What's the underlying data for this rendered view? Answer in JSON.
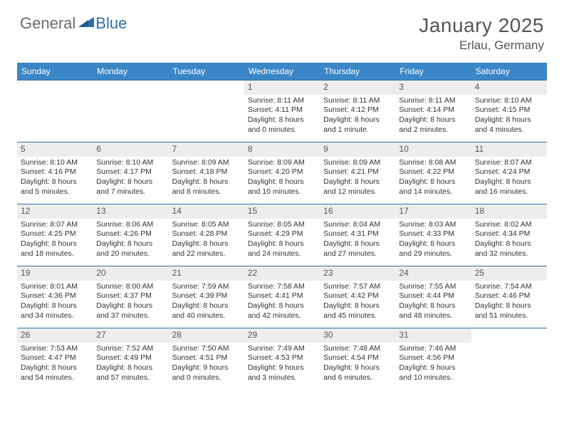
{
  "logo": {
    "general": "General",
    "blue": "Blue"
  },
  "title": "January 2025",
  "location": "Erlau, Germany",
  "header_bg": "#3b86c6",
  "weekdays": [
    "Sunday",
    "Monday",
    "Tuesday",
    "Wednesday",
    "Thursday",
    "Friday",
    "Saturday"
  ],
  "weeks": [
    [
      null,
      null,
      null,
      {
        "n": "1",
        "sr": "8:11 AM",
        "ss": "4:11 PM",
        "dl1": "Daylight: 8 hours",
        "dl2": "and 0 minutes."
      },
      {
        "n": "2",
        "sr": "8:11 AM",
        "ss": "4:12 PM",
        "dl1": "Daylight: 8 hours",
        "dl2": "and 1 minute."
      },
      {
        "n": "3",
        "sr": "8:11 AM",
        "ss": "4:14 PM",
        "dl1": "Daylight: 8 hours",
        "dl2": "and 2 minutes."
      },
      {
        "n": "4",
        "sr": "8:10 AM",
        "ss": "4:15 PM",
        "dl1": "Daylight: 8 hours",
        "dl2": "and 4 minutes."
      }
    ],
    [
      {
        "n": "5",
        "sr": "8:10 AM",
        "ss": "4:16 PM",
        "dl1": "Daylight: 8 hours",
        "dl2": "and 5 minutes."
      },
      {
        "n": "6",
        "sr": "8:10 AM",
        "ss": "4:17 PM",
        "dl1": "Daylight: 8 hours",
        "dl2": "and 7 minutes."
      },
      {
        "n": "7",
        "sr": "8:09 AM",
        "ss": "4:18 PM",
        "dl1": "Daylight: 8 hours",
        "dl2": "and 8 minutes."
      },
      {
        "n": "8",
        "sr": "8:09 AM",
        "ss": "4:20 PM",
        "dl1": "Daylight: 8 hours",
        "dl2": "and 10 minutes."
      },
      {
        "n": "9",
        "sr": "8:09 AM",
        "ss": "4:21 PM",
        "dl1": "Daylight: 8 hours",
        "dl2": "and 12 minutes."
      },
      {
        "n": "10",
        "sr": "8:08 AM",
        "ss": "4:22 PM",
        "dl1": "Daylight: 8 hours",
        "dl2": "and 14 minutes."
      },
      {
        "n": "11",
        "sr": "8:07 AM",
        "ss": "4:24 PM",
        "dl1": "Daylight: 8 hours",
        "dl2": "and 16 minutes."
      }
    ],
    [
      {
        "n": "12",
        "sr": "8:07 AM",
        "ss": "4:25 PM",
        "dl1": "Daylight: 8 hours",
        "dl2": "and 18 minutes."
      },
      {
        "n": "13",
        "sr": "8:06 AM",
        "ss": "4:26 PM",
        "dl1": "Daylight: 8 hours",
        "dl2": "and 20 minutes."
      },
      {
        "n": "14",
        "sr": "8:05 AM",
        "ss": "4:28 PM",
        "dl1": "Daylight: 8 hours",
        "dl2": "and 22 minutes."
      },
      {
        "n": "15",
        "sr": "8:05 AM",
        "ss": "4:29 PM",
        "dl1": "Daylight: 8 hours",
        "dl2": "and 24 minutes."
      },
      {
        "n": "16",
        "sr": "8:04 AM",
        "ss": "4:31 PM",
        "dl1": "Daylight: 8 hours",
        "dl2": "and 27 minutes."
      },
      {
        "n": "17",
        "sr": "8:03 AM",
        "ss": "4:33 PM",
        "dl1": "Daylight: 8 hours",
        "dl2": "and 29 minutes."
      },
      {
        "n": "18",
        "sr": "8:02 AM",
        "ss": "4:34 PM",
        "dl1": "Daylight: 8 hours",
        "dl2": "and 32 minutes."
      }
    ],
    [
      {
        "n": "19",
        "sr": "8:01 AM",
        "ss": "4:36 PM",
        "dl1": "Daylight: 8 hours",
        "dl2": "and 34 minutes."
      },
      {
        "n": "20",
        "sr": "8:00 AM",
        "ss": "4:37 PM",
        "dl1": "Daylight: 8 hours",
        "dl2": "and 37 minutes."
      },
      {
        "n": "21",
        "sr": "7:59 AM",
        "ss": "4:39 PM",
        "dl1": "Daylight: 8 hours",
        "dl2": "and 40 minutes."
      },
      {
        "n": "22",
        "sr": "7:58 AM",
        "ss": "4:41 PM",
        "dl1": "Daylight: 8 hours",
        "dl2": "and 42 minutes."
      },
      {
        "n": "23",
        "sr": "7:57 AM",
        "ss": "4:42 PM",
        "dl1": "Daylight: 8 hours",
        "dl2": "and 45 minutes."
      },
      {
        "n": "24",
        "sr": "7:55 AM",
        "ss": "4:44 PM",
        "dl1": "Daylight: 8 hours",
        "dl2": "and 48 minutes."
      },
      {
        "n": "25",
        "sr": "7:54 AM",
        "ss": "4:46 PM",
        "dl1": "Daylight: 8 hours",
        "dl2": "and 51 minutes."
      }
    ],
    [
      {
        "n": "26",
        "sr": "7:53 AM",
        "ss": "4:47 PM",
        "dl1": "Daylight: 8 hours",
        "dl2": "and 54 minutes."
      },
      {
        "n": "27",
        "sr": "7:52 AM",
        "ss": "4:49 PM",
        "dl1": "Daylight: 8 hours",
        "dl2": "and 57 minutes."
      },
      {
        "n": "28",
        "sr": "7:50 AM",
        "ss": "4:51 PM",
        "dl1": "Daylight: 9 hours",
        "dl2": "and 0 minutes."
      },
      {
        "n": "29",
        "sr": "7:49 AM",
        "ss": "4:53 PM",
        "dl1": "Daylight: 9 hours",
        "dl2": "and 3 minutes."
      },
      {
        "n": "30",
        "sr": "7:48 AM",
        "ss": "4:54 PM",
        "dl1": "Daylight: 9 hours",
        "dl2": "and 6 minutes."
      },
      {
        "n": "31",
        "sr": "7:46 AM",
        "ss": "4:56 PM",
        "dl1": "Daylight: 9 hours",
        "dl2": "and 10 minutes."
      },
      null
    ]
  ],
  "labels": {
    "sunrise": "Sunrise:",
    "sunset": "Sunset:"
  }
}
